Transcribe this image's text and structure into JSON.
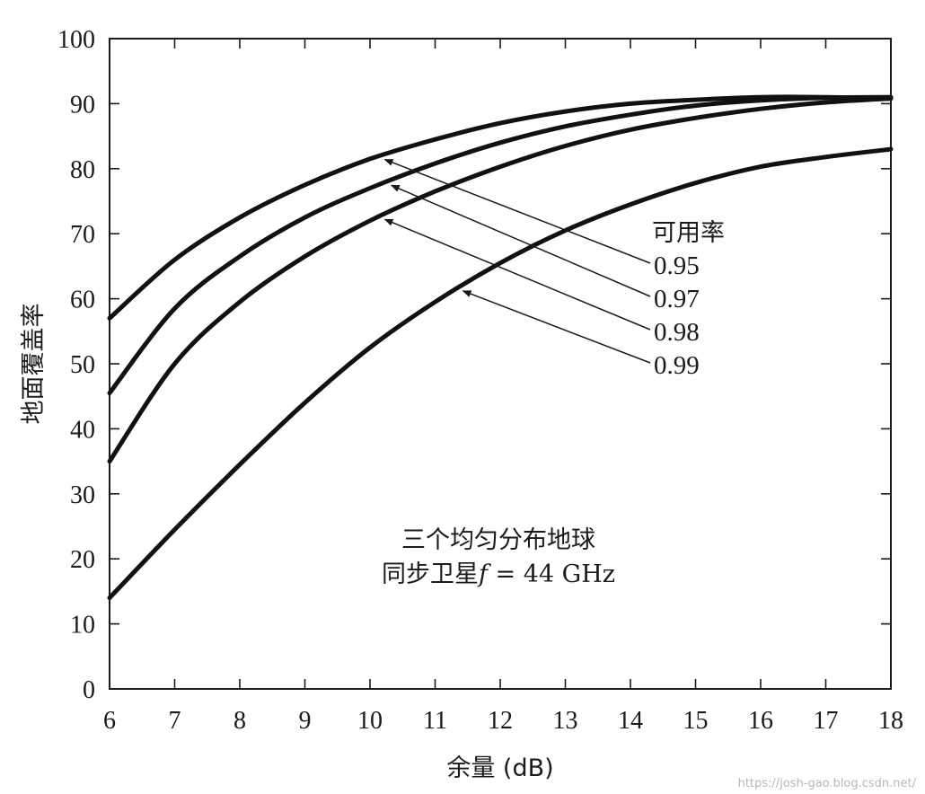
{
  "chart_data": {
    "type": "line",
    "xlabel": "余量 (dB)",
    "ylabel": "地面覆盖率",
    "xlim": [
      6,
      18
    ],
    "ylim": [
      0,
      100
    ],
    "x_ticks": [
      "6",
      "7",
      "8",
      "9",
      "10",
      "11",
      "12",
      "13",
      "14",
      "15",
      "16",
      "17",
      "18"
    ],
    "y_ticks": [
      "0",
      "10",
      "20",
      "30",
      "40",
      "50",
      "60",
      "70",
      "80",
      "90",
      "100"
    ],
    "grid": false,
    "legend_title": "可用率",
    "annotation": {
      "line1": "三个均匀分布地球",
      "line2": "同步卫星",
      "f_symbol": "f",
      "line2_suffix": " = 44 GHz"
    },
    "series": [
      {
        "name": "0.95",
        "x": [
          6,
          7,
          8,
          9,
          10,
          11,
          12,
          13,
          14,
          15,
          16,
          17,
          18
        ],
        "y": [
          57,
          66,
          72.5,
          77.5,
          81.5,
          84.5,
          87,
          88.8,
          90,
          90.6,
          91,
          91,
          90.8
        ]
      },
      {
        "name": "0.97",
        "x": [
          6,
          7,
          8,
          9,
          10,
          11,
          12,
          13,
          14,
          15,
          16,
          17,
          18
        ],
        "y": [
          45.5,
          58.5,
          66.5,
          72.5,
          77,
          80.8,
          84,
          86.5,
          88.3,
          89.7,
          90.5,
          90.9,
          91
        ]
      },
      {
        "name": "0.98",
        "x": [
          6,
          7,
          8,
          9,
          10,
          11,
          12,
          13,
          14,
          15,
          16,
          17,
          18
        ],
        "y": [
          35,
          50,
          59.5,
          66.5,
          72,
          76.5,
          80.3,
          83.5,
          86,
          87.8,
          89.2,
          90.2,
          90.8
        ]
      },
      {
        "name": "0.99",
        "x": [
          6,
          7,
          8,
          9,
          10,
          11,
          12,
          13,
          14,
          15,
          16,
          17,
          18
        ],
        "y": [
          14,
          24.5,
          34.5,
          44,
          52.5,
          59.5,
          65.5,
          70.5,
          74.5,
          77.8,
          80.3,
          81.8,
          83
        ]
      }
    ],
    "label_arrows": [
      {
        "series": "0.95",
        "x": 10.2
      },
      {
        "series": "0.97",
        "x": 10.3
      },
      {
        "series": "0.98",
        "x": 10.2
      },
      {
        "series": "0.99",
        "x": 11.4
      }
    ]
  },
  "watermark": "https://josh-gao.blog.csdn.net/"
}
